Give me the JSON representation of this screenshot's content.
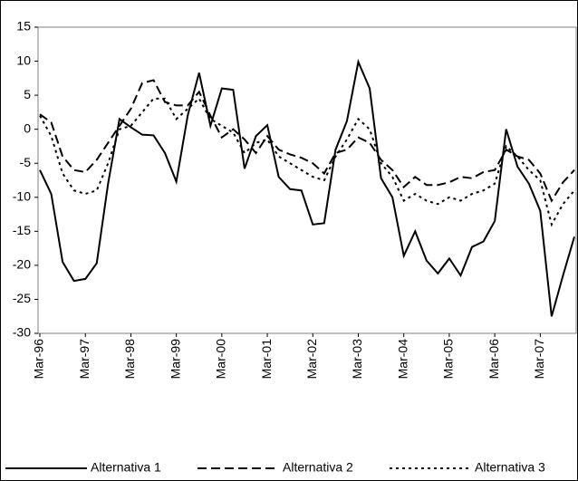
{
  "chart_data": {
    "type": "line",
    "categories": [
      "Mar-96",
      null,
      null,
      null,
      "Mar-97",
      null,
      null,
      null,
      "Mar-98",
      null,
      null,
      null,
      "Mar-99",
      null,
      null,
      null,
      "Mar-00",
      null,
      null,
      null,
      "Mar-01",
      null,
      null,
      null,
      "Mar-02",
      null,
      null,
      null,
      "Mar-03",
      null,
      null,
      null,
      "Mar-04",
      null,
      null,
      null,
      "Mar-05",
      null,
      null,
      null,
      "Mar-06",
      null,
      null,
      null,
      "Mar-07",
      null,
      null,
      null
    ],
    "series": [
      {
        "name": "Alternativa 1",
        "color": "#000000",
        "dash": "solid",
        "values": [
          -6,
          -9.5,
          -19.5,
          -22.3,
          -22,
          -19.7,
          -8,
          1.5,
          0.3,
          -0.8,
          -0.9,
          -3.5,
          -7.7,
          2,
          8.3,
          0.5,
          6,
          5.8,
          -5.8,
          -1,
          0.6,
          -7,
          -8.8,
          -9,
          -14,
          -13.8,
          -3,
          1.2,
          9.9,
          6,
          -7.2,
          -10,
          -18.6,
          -15,
          -19.3,
          -21.2,
          -19,
          -21.5,
          -17.3,
          -16.5,
          -13.5,
          0,
          -5.5,
          -8,
          -12,
          -27.5,
          -21.5,
          -15.8
        ]
      },
      {
        "name": "Alternativa 2",
        "color": "#000000",
        "dash": "long",
        "values": [
          2.2,
          1,
          -4,
          -6,
          -6.3,
          -4.5,
          -2,
          0.5,
          3,
          6.8,
          7.2,
          4,
          3.5,
          3.5,
          5.5,
          2,
          -1.2,
          0,
          -1.5,
          -3.5,
          -1,
          -3,
          -3.7,
          -4.2,
          -5,
          -6.5,
          -3.5,
          -3,
          -1.2,
          -2,
          -4.5,
          -6,
          -8.5,
          -7,
          -8.2,
          -8.2,
          -7.8,
          -7,
          -7.2,
          -6.3,
          -6,
          -3,
          -4,
          -4.5,
          -6.5,
          -10.5,
          -7.8,
          -6
        ]
      },
      {
        "name": "Alternativa 3",
        "color": "#000000",
        "dash": "dotted",
        "values": [
          2,
          -1,
          -6.5,
          -9,
          -9.5,
          -9,
          -5,
          0,
          0.5,
          2.5,
          4.5,
          4.5,
          1.5,
          3,
          4.5,
          1.5,
          0.5,
          -0.5,
          -3.5,
          -2,
          -1.5,
          -4,
          -5,
          -6,
          -7,
          -7.5,
          -4,
          -1.5,
          1.5,
          0,
          -5,
          -7,
          -10.5,
          -9.5,
          -10.5,
          -11,
          -10,
          -10.5,
          -9.5,
          -9,
          -8,
          -2.5,
          -4,
          -6,
          -7.5,
          -14,
          -11,
          -9
        ]
      }
    ],
    "ylim": [
      -30,
      15
    ],
    "yticks": [
      -30,
      -25,
      -20,
      -15,
      -10,
      -5,
      0,
      5,
      10,
      15
    ],
    "grid": false,
    "legend": "bottom"
  }
}
